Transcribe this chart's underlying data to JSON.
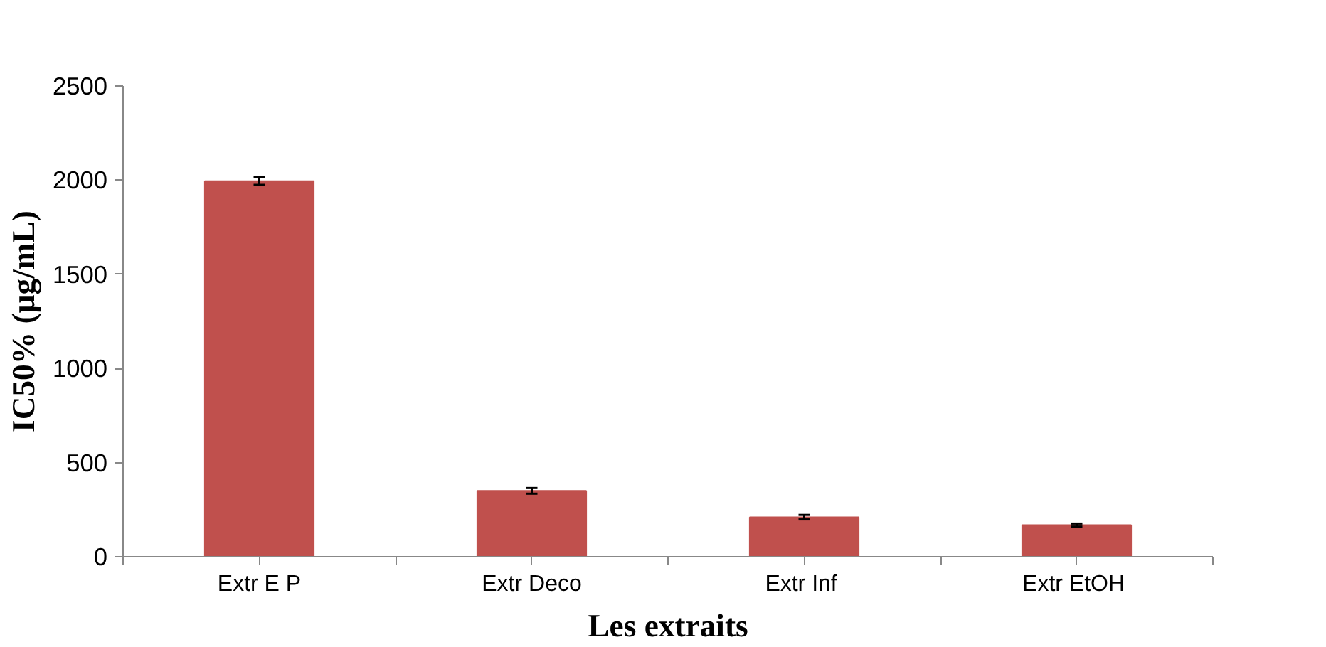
{
  "chart_data": {
    "type": "bar",
    "xlabel": "Les extraits",
    "ylabel": "IC50% (µg/mL)",
    "categories": [
      "Extr E P",
      "Extr Deco",
      "Extr  Inf",
      "Extr  EtOH"
    ],
    "values": [
      1995,
      350,
      210,
      168
    ],
    "errors": [
      20,
      15,
      12,
      8
    ],
    "color": "#c0504d",
    "ylim": [
      0,
      2500
    ],
    "yticks": [
      0,
      500,
      1000,
      1500,
      2000,
      2500
    ],
    "grid": false
  }
}
